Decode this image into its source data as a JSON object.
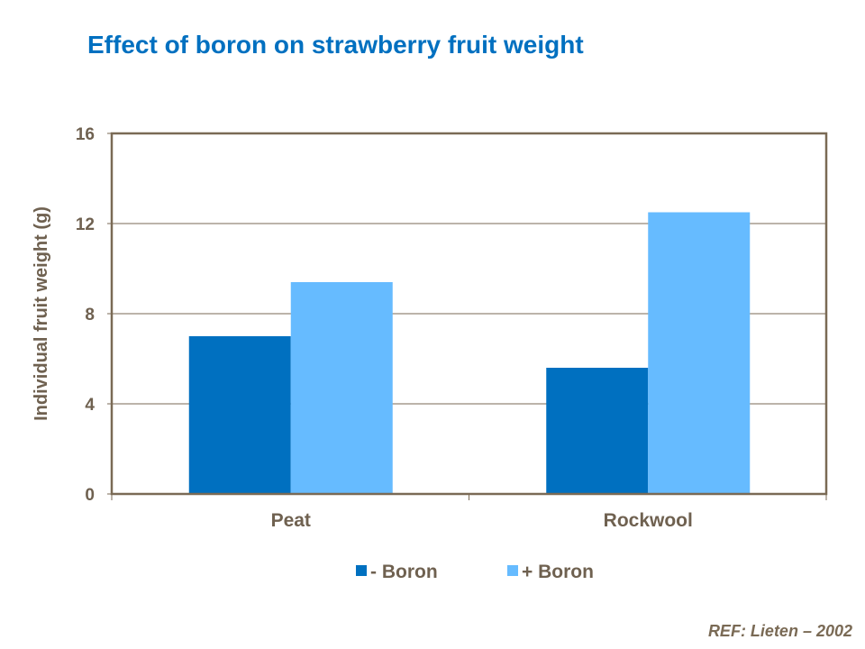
{
  "title": "Effect of boron on strawberry fruit weight",
  "reference": "REF:  Lieten – 2002",
  "chart_data": {
    "type": "bar",
    "title": "Effect of boron on strawberry fruit weight",
    "xlabel": "",
    "ylabel": "Individual fruit weight (g)",
    "categories": [
      "Peat",
      "Rockwool"
    ],
    "series": [
      {
        "name": "- Boron",
        "values": [
          7.0,
          5.6
        ],
        "color": "#0070C0"
      },
      {
        "name": "+ Boron",
        "values": [
          9.4,
          12.5
        ],
        "color": "#66BBFF"
      }
    ],
    "ylim": [
      0,
      16
    ],
    "yticks": [
      "0",
      "4",
      "8",
      "12",
      "16"
    ],
    "grid": true,
    "legend": "bottom"
  }
}
